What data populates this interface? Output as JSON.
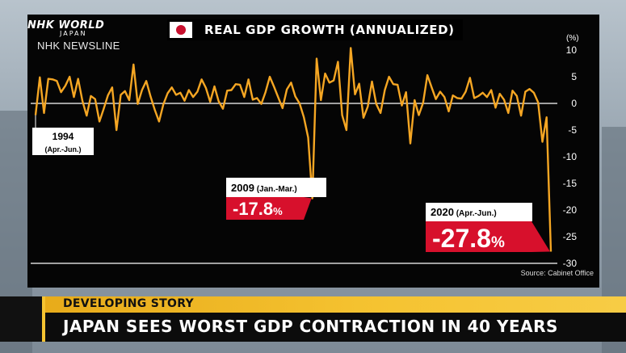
{
  "broadcaster": {
    "logo_main": "NHK WORLD",
    "logo_sub": "JAPAN",
    "program": "NHK NEWSLINE"
  },
  "chart_data": {
    "type": "line",
    "title": "REAL GDP GROWTH (ANNUALIZED)",
    "unit_label": "(%)",
    "source": "Source: Cabinet Office",
    "ylim": [
      -30,
      10
    ],
    "yticks": [
      10,
      5,
      0,
      -5,
      -10,
      -15,
      -20,
      -25,
      -30
    ],
    "line_color": "#f5a623",
    "flag": "japan-flag-icon",
    "x_start_label": "1994",
    "x_start_sub": "(Apr.-Jun.)",
    "series": [
      {
        "values": [
          -2.2,
          4.9,
          -1.8,
          4.6,
          4.5,
          4.2,
          2.1,
          3.3,
          5.0,
          1.2,
          4.6,
          0.5,
          -2.3,
          1.4,
          0.8,
          -3.4,
          -1.0,
          1.5,
          3.0,
          -5.0,
          1.6,
          2.3,
          0.6,
          7.3,
          -0.1,
          2.5,
          4.2,
          1.3,
          -1.2,
          -3.4,
          -0.2,
          1.9,
          3.0,
          1.6,
          2.0,
          0.5,
          2.5,
          1.2,
          2.2,
          4.5,
          2.9,
          0.3,
          3.2,
          0.4,
          -1.0,
          2.4,
          2.5,
          3.6,
          3.5,
          1.2,
          4.5,
          0.7,
          1.0,
          -0.1,
          2.1,
          5.0,
          3.1,
          1.1,
          -0.9,
          2.6,
          3.9,
          1.3,
          0.0,
          -2.6,
          -6.4,
          -17.8,
          8.4,
          0.6,
          5.6,
          3.9,
          4.3,
          7.8,
          -2.2,
          -5.0,
          10.4,
          1.7,
          3.7,
          -2.7,
          -0.6,
          4.1,
          -0.1,
          -1.8,
          2.5,
          5.0,
          3.6,
          3.5,
          -0.4,
          2.1,
          -7.5,
          0.6,
          -2.2,
          0.1,
          5.3,
          3.0,
          0.8,
          2.2,
          1.2,
          -1.5,
          1.5,
          1.0,
          0.9,
          2.2,
          4.8,
          1.0,
          1.4,
          2.0,
          1.2,
          2.5,
          -0.8,
          1.8,
          0.7,
          -1.8,
          2.4,
          1.4,
          -2.3,
          2.2,
          2.7,
          2.0,
          0.2,
          -7.2,
          -2.6,
          -27.8
        ]
      }
    ],
    "annotations": [
      {
        "label": "2009",
        "sub": "(Jan.-Mar.)",
        "value_text": "-17.8",
        "unit": "%"
      },
      {
        "label": "2020",
        "sub": "(Apr.-Jun.)",
        "value_text": "-27.8",
        "unit": "%"
      }
    ]
  },
  "ticker": {
    "tag": "DEVELOPING STORY",
    "headline": "JAPAN SEES WORST GDP CONTRACTION IN 40 YEARS"
  }
}
